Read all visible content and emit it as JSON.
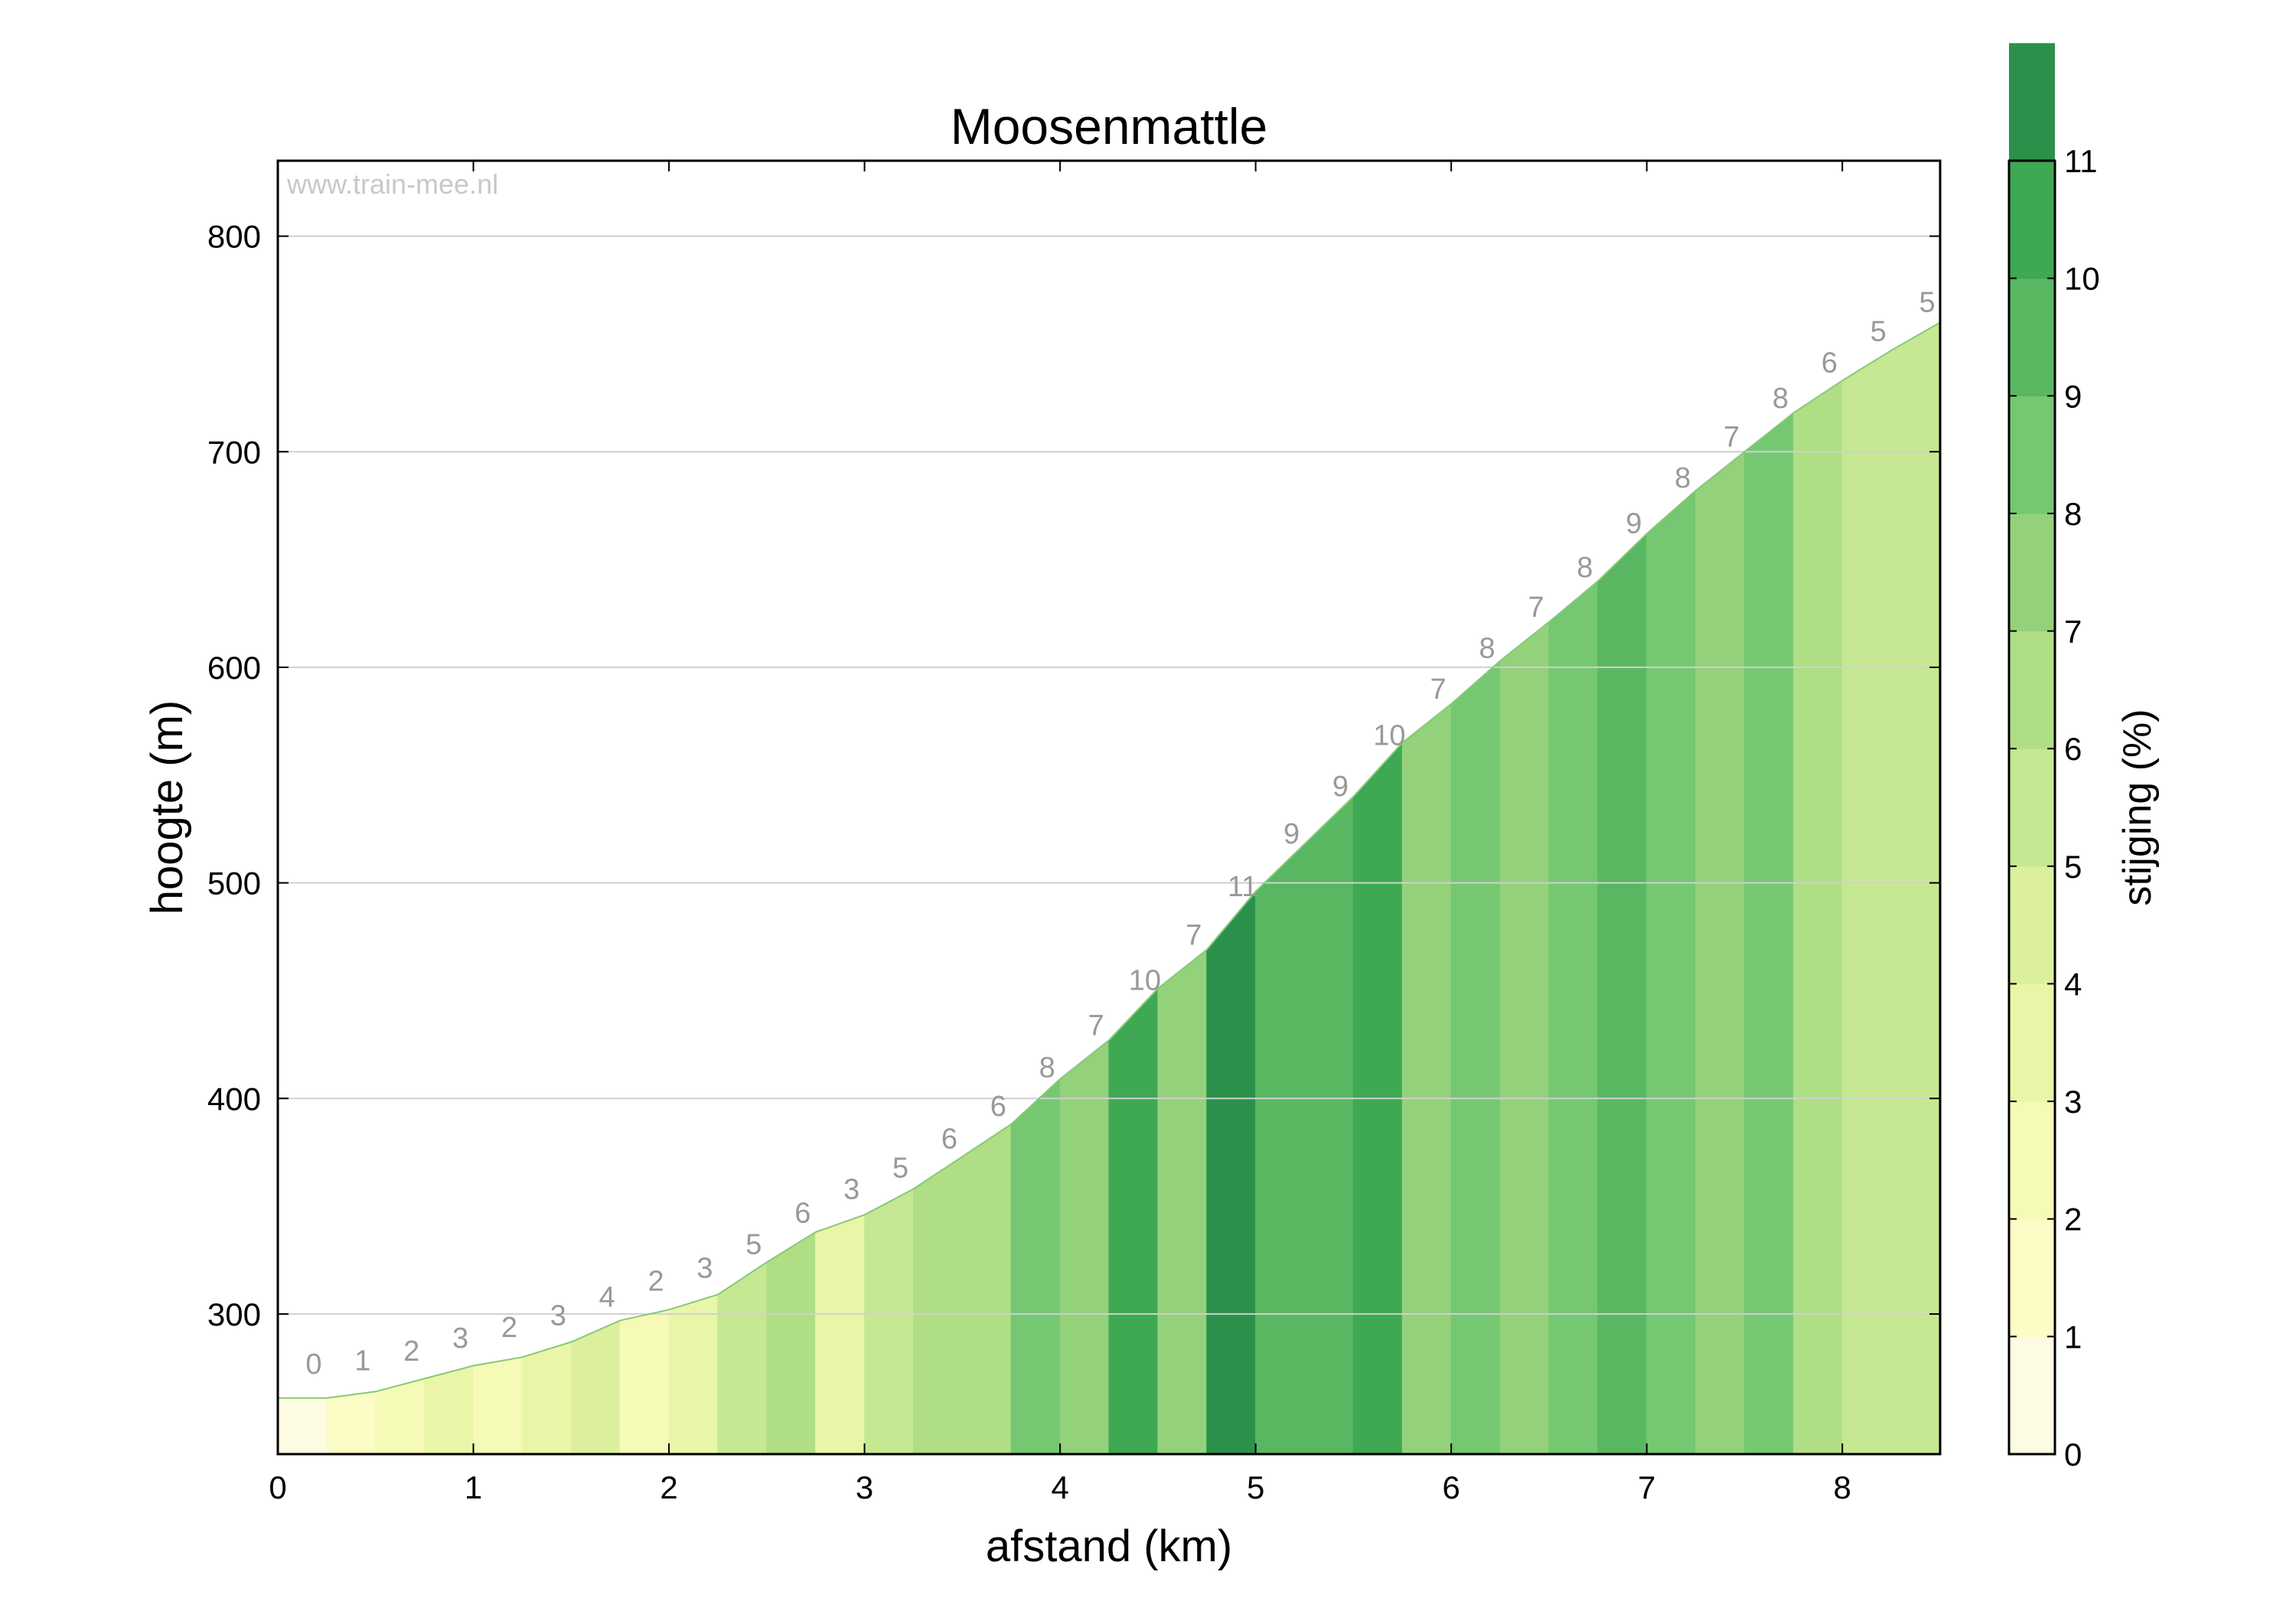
{
  "chart_data": {
    "type": "area",
    "title": "Moosenmattle",
    "xlabel": "afstand (km)",
    "ylabel": "hoogte (m)",
    "watermark": "www.train-mee.nl",
    "xlim": [
      0,
      8.5
    ],
    "ylim": [
      235,
      835
    ],
    "xticks": [
      0,
      1,
      2,
      3,
      4,
      5,
      6,
      7,
      8
    ],
    "yticks": [
      300,
      400,
      500,
      600,
      700,
      800
    ],
    "grid": "horizontal",
    "segment_length_km": 0.25,
    "elevation_profile": {
      "x": [
        0,
        0.25,
        0.5,
        0.75,
        1.0,
        1.25,
        1.5,
        1.75,
        2.0,
        2.25,
        2.5,
        2.75,
        3.0,
        3.25,
        3.5,
        3.75,
        4.0,
        4.25,
        4.5,
        4.75,
        5.0,
        5.25,
        5.5,
        5.75,
        6.0,
        6.25,
        6.5,
        6.75,
        7.0,
        7.25,
        7.5,
        7.75,
        8.0,
        8.25,
        8.5
      ],
      "elevation_m": [
        261,
        261,
        264,
        270,
        276,
        280,
        287,
        297,
        302,
        309,
        324,
        338,
        346,
        358,
        373,
        388,
        409,
        427,
        451,
        469,
        496,
        518,
        540,
        565,
        583,
        603,
        621,
        640,
        662,
        682,
        700,
        718,
        733,
        747,
        760
      ]
    },
    "gradients_pct": [
      0,
      1,
      2,
      3,
      2,
      3,
      4,
      2,
      3,
      5,
      6,
      3,
      5,
      6,
      6,
      8,
      7,
      10,
      7,
      11,
      9,
      9,
      10,
      7,
      8,
      7,
      8,
      9,
      8,
      7,
      8,
      6,
      5,
      5
    ],
    "colorbar": {
      "label": "stijging (%)",
      "min": 0,
      "max": 11,
      "ticks": [
        0,
        1,
        2,
        3,
        4,
        5,
        6,
        7,
        8,
        9,
        10,
        11
      ],
      "colors": [
        "#fdfce2",
        "#fbfcc6",
        "#f5fbb6",
        "#e9f6a7",
        "#dbef9d",
        "#c6e892",
        "#b0de85",
        "#93d17a",
        "#75c772",
        "#59b762",
        "#3ea853",
        "#2b914a"
      ]
    },
    "colors": {
      "outline": "#86c978",
      "label_text": "#999999",
      "watermark_text": "#c8c8c8",
      "grid": "#d0d0d0",
      "axis": "#000000"
    }
  }
}
